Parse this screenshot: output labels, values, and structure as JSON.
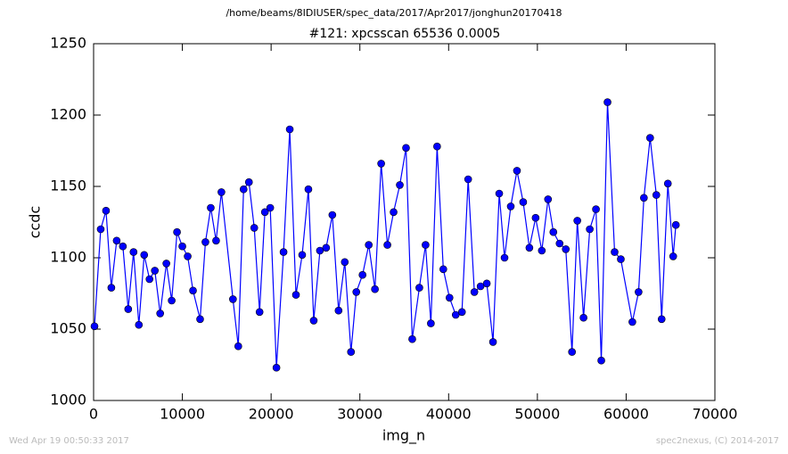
{
  "chart_data": {
    "type": "line",
    "header": "/home/beams/8IDIUSER/spec_data/2017/Apr2017/jonghun20170418",
    "title": "#121: xpcsscan 65536 0.0005",
    "x_label": "img_n",
    "y_label": "ccdc",
    "footer_left": "Wed Apr 19 00:50:33 2017",
    "footer_right": "spec2nexus, (C) 2014-2017",
    "xlim": [
      0,
      70000
    ],
    "xticks": [
      0,
      10000,
      20000,
      30000,
      40000,
      50000,
      60000,
      70000
    ],
    "ylim": [
      1000,
      1250
    ],
    "yticks": [
      1000,
      1050,
      1100,
      1150,
      1200,
      1250
    ],
    "grid": false,
    "series": [
      {
        "color": "#0000ff",
        "x": [
          100,
          800,
          1400,
          2000,
          2600,
          3300,
          3900,
          4500,
          5100,
          5700,
          6300,
          6900,
          7500,
          8200,
          8800,
          9400,
          10000,
          10600,
          11200,
          12000,
          12600,
          13200,
          13800,
          14400,
          15700,
          16300,
          16900,
          17500,
          18100,
          18700,
          19300,
          19900,
          20600,
          21400,
          22100,
          22800,
          23500,
          24200,
          24800,
          25500,
          26200,
          26900,
          27600,
          28300,
          29000,
          29600,
          30300,
          31000,
          31700,
          32400,
          33100,
          33800,
          34500,
          35200,
          35900,
          36700,
          37400,
          38000,
          38700,
          39400,
          40100,
          40800,
          41500,
          42200,
          42900,
          43600,
          44300,
          45000,
          45700,
          46300,
          47000,
          47700,
          48400,
          49100,
          49800,
          50500,
          51200,
          51800,
          52500,
          53200,
          53900,
          54500,
          55200,
          55900,
          56600,
          57200,
          57900,
          58700,
          59400,
          60700,
          61400,
          62000,
          62700,
          63400,
          64000,
          64700,
          65300,
          65600
        ],
        "values": [
          1052,
          1120,
          1133,
          1079,
          1112,
          1108,
          1064,
          1104,
          1053,
          1102,
          1085,
          1091,
          1061,
          1096,
          1070,
          1118,
          1108,
          1101,
          1077,
          1057,
          1111,
          1135,
          1112,
          1146,
          1071,
          1038,
          1148,
          1153,
          1121,
          1062,
          1132,
          1135,
          1023,
          1104,
          1190,
          1074,
          1102,
          1148,
          1056,
          1105,
          1107,
          1130,
          1063,
          1097,
          1034,
          1076,
          1088,
          1109,
          1078,
          1166,
          1109,
          1132,
          1151,
          1177,
          1043,
          1079,
          1109,
          1054,
          1178,
          1092,
          1072,
          1060,
          1062,
          1155,
          1076,
          1080,
          1082,
          1041,
          1145,
          1100,
          1136,
          1161,
          1139,
          1107,
          1128,
          1105,
          1141,
          1118,
          1110,
          1106,
          1034,
          1126,
          1058,
          1120,
          1134,
          1028,
          1209,
          1104,
          1099,
          1055,
          1076,
          1142,
          1184,
          1144,
          1057,
          1152,
          1101,
          1123
        ]
      }
    ]
  }
}
